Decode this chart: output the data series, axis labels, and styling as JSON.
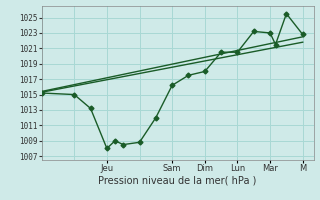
{
  "xlabel": "Pression niveau de la mer( hPa )",
  "background_color": "#cfeae8",
  "grid_color": "#a8d8d4",
  "line_color": "#1a5c28",
  "ylim": [
    1006.5,
    1026.5
  ],
  "yticks": [
    1007,
    1009,
    1011,
    1013,
    1015,
    1017,
    1019,
    1021,
    1023,
    1025
  ],
  "day_labels": [
    "Jeu",
    "Sam",
    "Dim",
    "Lun",
    "Mar",
    "M"
  ],
  "day_positions": [
    24,
    48,
    60,
    72,
    84,
    96
  ],
  "xmin": 0,
  "xmax": 100,
  "series1_x": [
    0,
    12,
    18,
    24,
    27,
    30,
    36,
    42,
    48,
    54,
    60,
    66,
    72,
    78,
    84,
    86,
    90,
    96
  ],
  "series1_y": [
    1015.2,
    1015.0,
    1013.2,
    1008.0,
    1009.0,
    1008.5,
    1008.8,
    1012.0,
    1016.2,
    1017.5,
    1018.0,
    1020.5,
    1020.5,
    1023.2,
    1023.0,
    1021.5,
    1025.5,
    1022.8
  ],
  "series2_x": [
    0,
    96
  ],
  "series2_y": [
    1015.3,
    1021.8
  ],
  "series3_x": [
    0,
    96
  ],
  "series3_y": [
    1015.4,
    1022.5
  ],
  "figsize": [
    3.2,
    2.0
  ],
  "dpi": 100
}
